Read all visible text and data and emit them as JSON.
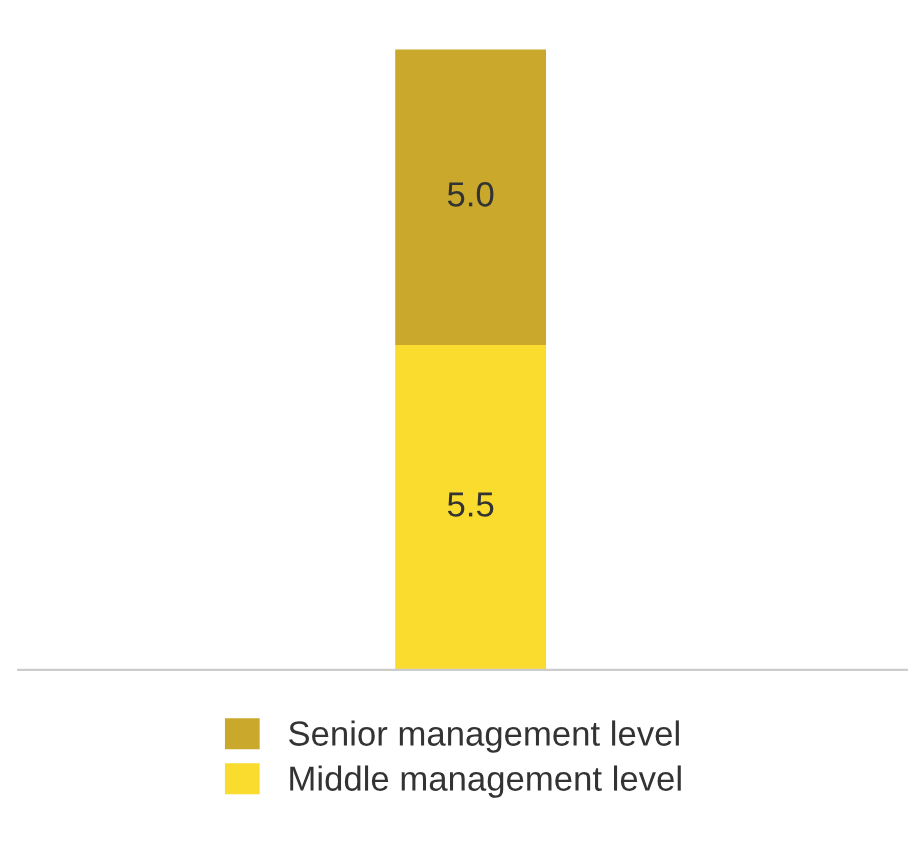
{
  "chart_data": {
    "type": "bar",
    "stacked": true,
    "categories": [
      null
    ],
    "series": [
      {
        "name": "Middle management level",
        "color": "#f9dc2e",
        "values": [
          5.5
        ],
        "value_labels": [
          "5.5"
        ]
      },
      {
        "name": "Senior management level",
        "color": "#c9a82c",
        "values": [
          5.0
        ],
        "value_labels": [
          "5.0"
        ]
      }
    ],
    "legend": "bottom",
    "grid": false
  }
}
